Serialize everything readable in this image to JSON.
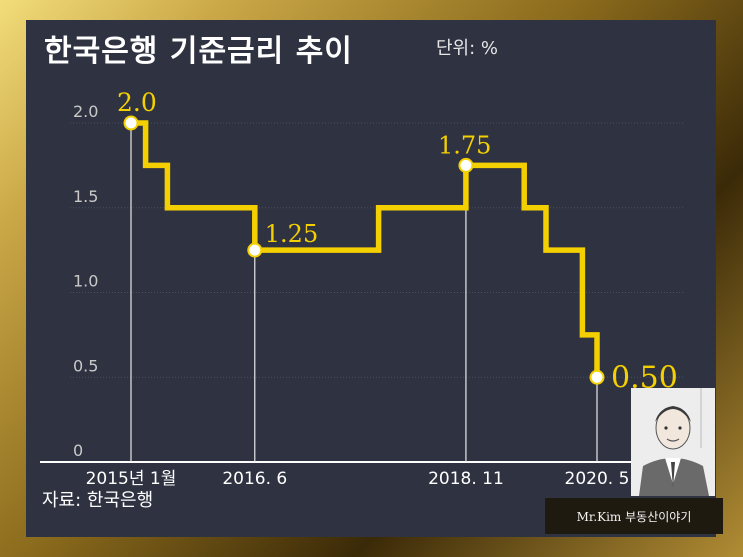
{
  "title": "한국은행 기준금리 추이",
  "unit_label": "단위: %",
  "source_label": "자료: 한국은행",
  "watermark": "Mr.Kim 부동산이야기",
  "colors": {
    "panel": "#2f3341",
    "line": "#f5d000",
    "grid": "#4a4f5e",
    "text": "#ffffff",
    "tick": "#c9c9c9"
  },
  "chart_data": {
    "type": "line",
    "title": "한국은행 기준금리 추이",
    "ylabel": "단위: %",
    "ylim": [
      0,
      2.0
    ],
    "yticks": [
      {
        "value": 0,
        "label": "0"
      },
      {
        "value": 0.5,
        "label": "0.5"
      },
      {
        "value": 1.0,
        "label": "1.0"
      },
      {
        "value": 1.5,
        "label": "1.5"
      },
      {
        "value": 2.0,
        "label": "2.0"
      }
    ],
    "xticks": [
      {
        "date": "2015-01",
        "label": "2015년 1월"
      },
      {
        "date": "2016-06",
        "label": "2016. 6"
      },
      {
        "date": "2018-11",
        "label": "2018. 11"
      },
      {
        "date": "2020-05",
        "label": "2020. 5"
      }
    ],
    "x_range": [
      "2015-01",
      "2020-05"
    ],
    "grid": true,
    "series": [
      {
        "points": [
          {
            "x": "2015-01",
            "y": 2.0
          },
          {
            "x": "2015-03",
            "y": 2.0
          },
          {
            "x": "2015-03",
            "y": 1.75
          },
          {
            "x": "2015-06",
            "y": 1.75
          },
          {
            "x": "2015-06",
            "y": 1.5
          },
          {
            "x": "2016-06",
            "y": 1.5
          },
          {
            "x": "2016-06",
            "y": 1.25
          },
          {
            "x": "2017-11",
            "y": 1.25
          },
          {
            "x": "2017-11",
            "y": 1.5
          },
          {
            "x": "2018-11",
            "y": 1.5
          },
          {
            "x": "2018-11",
            "y": 1.75
          },
          {
            "x": "2019-07",
            "y": 1.75
          },
          {
            "x": "2019-07",
            "y": 1.5
          },
          {
            "x": "2019-10",
            "y": 1.5
          },
          {
            "x": "2019-10",
            "y": 1.25
          },
          {
            "x": "2020-03",
            "y": 1.25
          },
          {
            "x": "2020-03",
            "y": 0.75
          },
          {
            "x": "2020-05",
            "y": 0.75
          },
          {
            "x": "2020-05",
            "y": 0.5
          }
        ]
      }
    ],
    "annotations": [
      {
        "x": "2015-01",
        "y": 2.0,
        "label": "2.0"
      },
      {
        "x": "2016-06",
        "y": 1.25,
        "label": "1.25"
      },
      {
        "x": "2018-11",
        "y": 1.75,
        "label": "1.75"
      },
      {
        "x": "2020-05",
        "y": 0.5,
        "label": "0.50"
      }
    ]
  }
}
